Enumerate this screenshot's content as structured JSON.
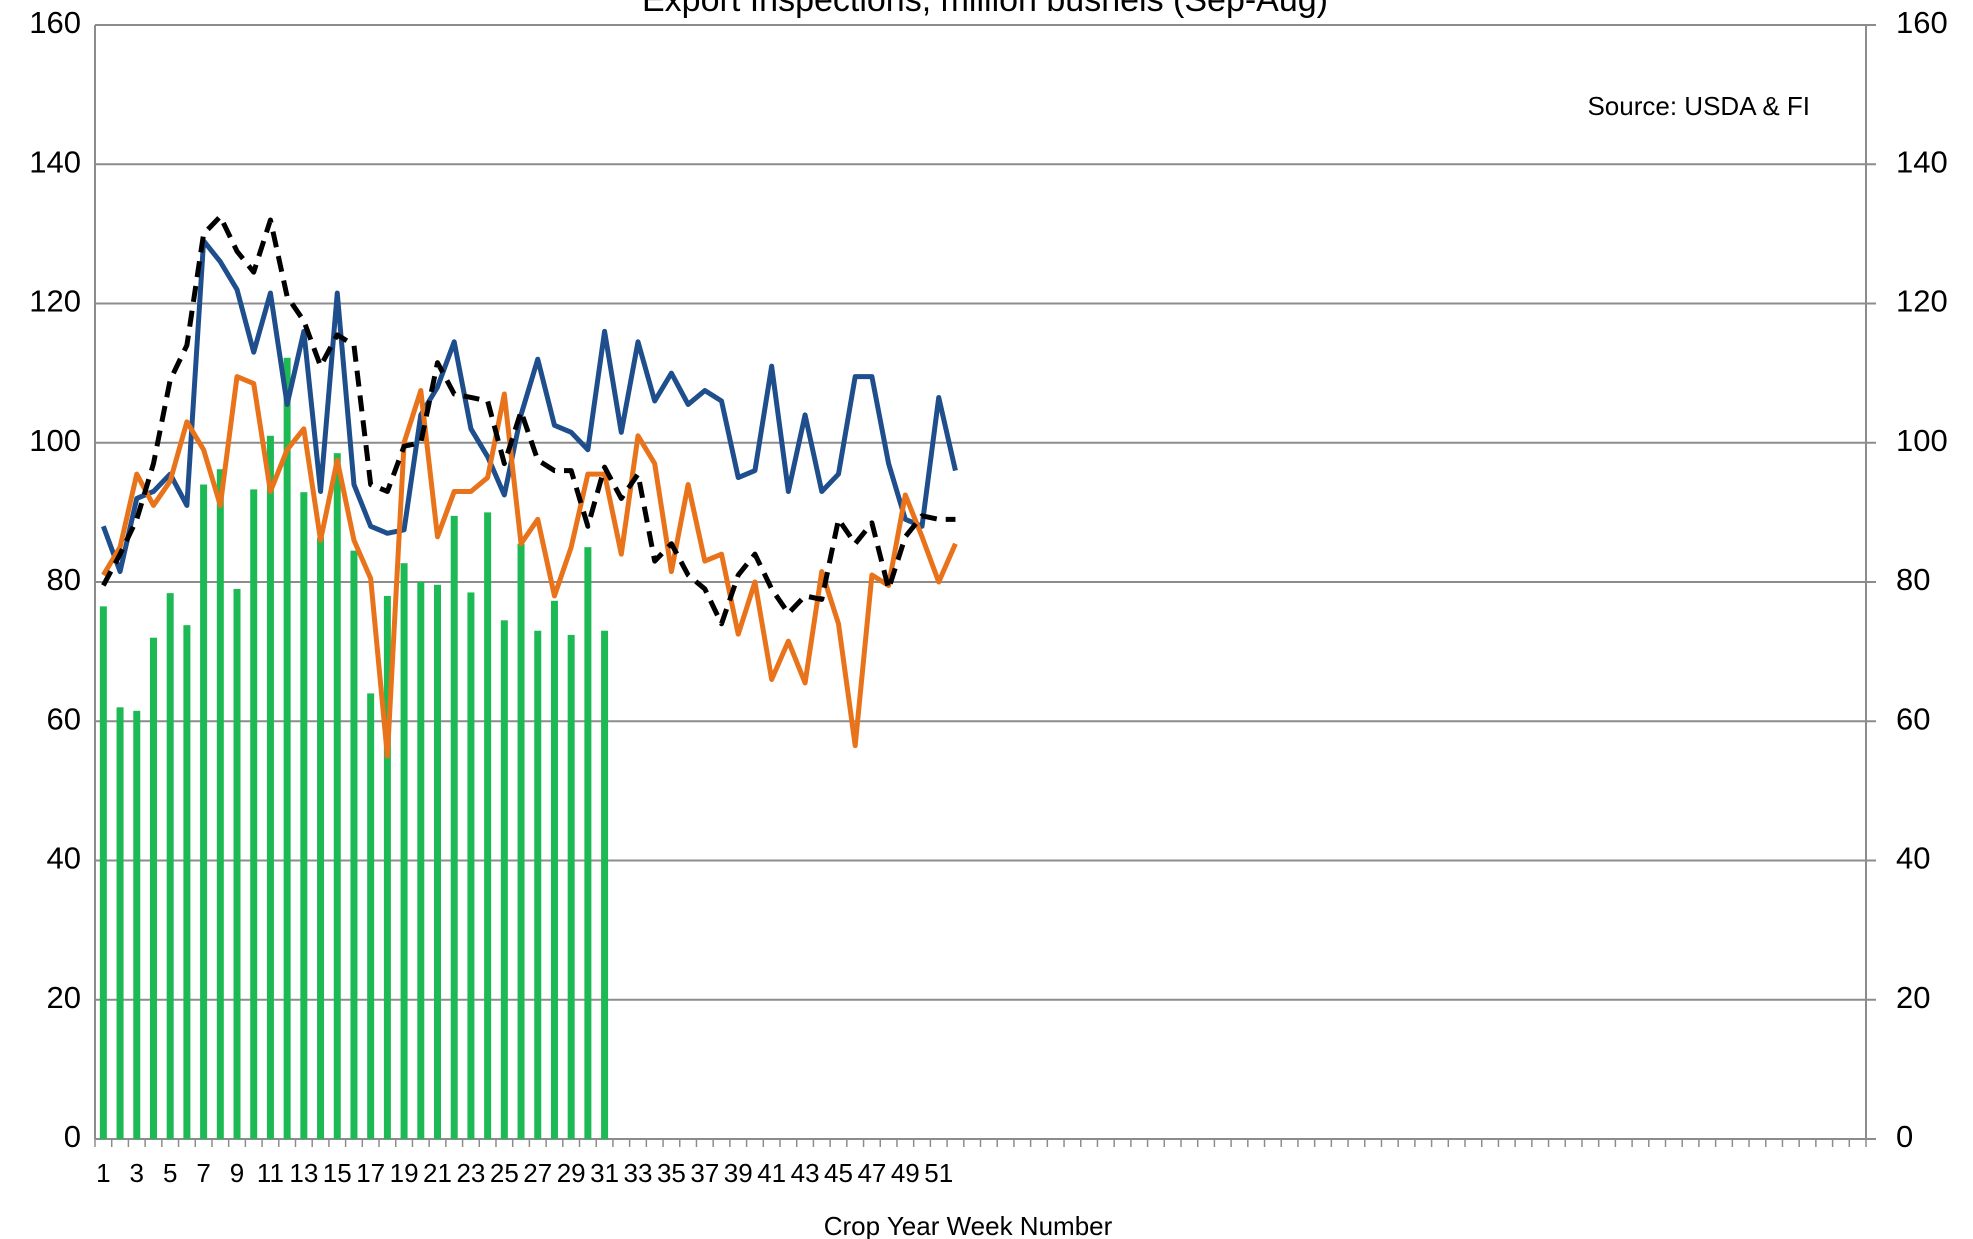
{
  "chart_data": {
    "type": "bar",
    "title": "Export Inspections, million bushels (Sep-Aug)",
    "annotation": "Source: USDA & FI",
    "x_label": "Crop Year Week Number",
    "categories": [
      "1",
      null,
      "3",
      null,
      "5",
      null,
      "7",
      null,
      "9",
      null,
      "11",
      null,
      "13",
      null,
      "15",
      null,
      "17",
      null,
      "19",
      null,
      "21",
      null,
      "23",
      null,
      "25",
      null,
      "27",
      null,
      "29",
      null,
      "31",
      null,
      "33",
      null,
      "35",
      null,
      "37",
      null,
      "39",
      null,
      "41",
      null,
      "43",
      null,
      "45",
      null,
      "47",
      null,
      "49",
      null,
      "51",
      null,
      null,
      null,
      null,
      null,
      null,
      null,
      null,
      null,
      null,
      null,
      null,
      null,
      null,
      null,
      null,
      null,
      null,
      null,
      null,
      null,
      null,
      null,
      null,
      null,
      null,
      null,
      null,
      null,
      null,
      null,
      null,
      null,
      null,
      null,
      null,
      null,
      null,
      null,
      null,
      null,
      null,
      null,
      null,
      null,
      null,
      null,
      null,
      null,
      null,
      null,
      null,
      null,
      null,
      null
    ],
    "series": [
      {
        "type": "bar",
        "color": "#1db954",
        "values": [
          76.5,
          62,
          61.5,
          72,
          78.4,
          73.8,
          94,
          96.2,
          79,
          93.3,
          101,
          112.2,
          92.9,
          86.4,
          98.5,
          84.5,
          64,
          78,
          82.7,
          80,
          79.6,
          89.5,
          78.5,
          90,
          74.5,
          85.5,
          73,
          77.3,
          72.4,
          85,
          73,
          null,
          null,
          null,
          null,
          null,
          null,
          null,
          null,
          null,
          null,
          null,
          null,
          null,
          null,
          null,
          null,
          null,
          null,
          null,
          null,
          null,
          null,
          null,
          null,
          null,
          null,
          null,
          null,
          null,
          null,
          null,
          null,
          null,
          null,
          null,
          null,
          null,
          null,
          null,
          null,
          null,
          null,
          null,
          null,
          null,
          null,
          null,
          null,
          null,
          null,
          null,
          null,
          null,
          null,
          null,
          null,
          null,
          null,
          null,
          null,
          null,
          null,
          null,
          null,
          null,
          null,
          null,
          null,
          null,
          null,
          null,
          null,
          null,
          null,
          null
        ]
      },
      {
        "type": "line",
        "color": "#1f4e8c",
        "values": [
          88,
          81.5,
          92,
          93,
          95.5,
          91,
          129,
          126,
          122,
          113,
          121.5,
          105.5,
          116,
          93,
          121.5,
          94,
          88,
          87,
          87.5,
          104,
          108,
          114.5,
          102,
          98,
          92.5,
          104,
          112,
          102.5,
          101.5,
          99,
          116,
          101.5,
          114.5,
          106,
          110,
          105.5,
          107.5,
          106,
          95,
          96,
          111,
          93,
          104,
          93,
          95.5,
          109.5,
          109.5,
          97,
          89,
          88,
          106.5,
          96,
          null,
          null,
          null,
          null,
          null,
          null,
          null,
          null,
          null,
          null,
          null,
          null,
          null,
          null,
          null,
          null,
          null,
          null,
          null,
          null,
          null,
          null,
          null,
          null,
          null,
          null,
          null,
          null,
          null,
          null,
          null,
          null,
          null,
          null,
          null,
          null,
          null,
          null,
          null,
          null,
          null,
          null,
          null,
          null,
          null,
          null,
          null,
          null,
          null,
          null,
          null,
          null,
          null,
          null
        ]
      },
      {
        "type": "line",
        "color": "#e8731a",
        "values": [
          81,
          85,
          95.5,
          91,
          94.5,
          103,
          99,
          91,
          109.5,
          108.5,
          93,
          99,
          102,
          86,
          97.5,
          86,
          80.5,
          55,
          100,
          107.5,
          86.5,
          93,
          93,
          95,
          107,
          85.5,
          89,
          78,
          85,
          95.5,
          95.5,
          84,
          101,
          97,
          81.5,
          94,
          83,
          84,
          72.5,
          80,
          66,
          71.5,
          65.5,
          81.5,
          74,
          56.5,
          81,
          79.5,
          92.5,
          86.5,
          80,
          85.5,
          null,
          null,
          null,
          null,
          null,
          null,
          null,
          null,
          null,
          null,
          null,
          null,
          null,
          null,
          null,
          null,
          null,
          null,
          null,
          null,
          null,
          null,
          null,
          null,
          null,
          null,
          null,
          null,
          null,
          null,
          null,
          null,
          null,
          null,
          null,
          null,
          null,
          null,
          null,
          null,
          null,
          null,
          null,
          null,
          null,
          null,
          null,
          null,
          null,
          null,
          null,
          null,
          null,
          null
        ]
      },
      {
        "type": "line",
        "color": "#000000",
        "dashed": true,
        "values": [
          79.5,
          84,
          89,
          97,
          109,
          114,
          130,
          132.5,
          127.5,
          124.5,
          132,
          121,
          117.5,
          111,
          115.5,
          114,
          94,
          93,
          99.5,
          100,
          111.5,
          107,
          106.5,
          106,
          97,
          104.5,
          97.5,
          96,
          96,
          88,
          96.5,
          92,
          95.5,
          83,
          85.5,
          81,
          79,
          74,
          81,
          84,
          79,
          75.5,
          78,
          77.5,
          89,
          85.5,
          88.5,
          79,
          86.5,
          89.5,
          89,
          89,
          null,
          null,
          null,
          null,
          null,
          null,
          null,
          null,
          null,
          null,
          null,
          null,
          null,
          null,
          null,
          null,
          null,
          null,
          null,
          null,
          null,
          null,
          null,
          null,
          null,
          null,
          null,
          null,
          null,
          null,
          null,
          null,
          null,
          null,
          null,
          null,
          null,
          null,
          null,
          null,
          null,
          null,
          null,
          null,
          null,
          null,
          null,
          null,
          null,
          null,
          null,
          null,
          null,
          null
        ]
      }
    ],
    "ylim": [
      0,
      160
    ],
    "yticks": [
      0,
      20,
      40,
      60,
      80,
      100,
      120,
      140,
      160
    ],
    "y2lim": [
      0,
      160
    ],
    "y2ticks": [
      0,
      20,
      40,
      60,
      80,
      100,
      120,
      140,
      160
    ],
    "grid": true
  }
}
